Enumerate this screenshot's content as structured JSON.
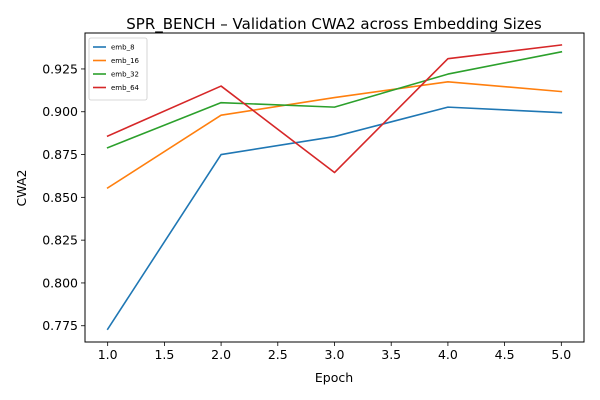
{
  "chart_data": {
    "type": "line",
    "title": "SPR_BENCH – Validation CWA2 across Embedding Sizes",
    "xlabel": "Epoch",
    "ylabel": "CWA2",
    "x": [
      1,
      2,
      3,
      4,
      5
    ],
    "xlim": [
      0.8,
      5.2
    ],
    "ylim": [
      0.7655,
      0.946
    ],
    "xticks": [
      "1.0",
      "1.5",
      "2.0",
      "2.5",
      "3.0",
      "3.5",
      "4.0",
      "4.5",
      "5.0"
    ],
    "yticks": [
      "0.775",
      "0.800",
      "0.825",
      "0.850",
      "0.875",
      "0.900",
      "0.925"
    ],
    "grid": false,
    "legend_position": "top-left",
    "series": [
      {
        "name": "emb_8",
        "color": "#1f77b4",
        "values": [
          0.773,
          0.875,
          0.8855,
          0.9027,
          0.8995
        ]
      },
      {
        "name": "emb_16",
        "color": "#ff7f0e",
        "values": [
          0.8555,
          0.898,
          0.9083,
          0.9175,
          0.9118
        ]
      },
      {
        "name": "emb_32",
        "color": "#2ca02c",
        "values": [
          0.879,
          0.9053,
          0.9027,
          0.922,
          0.935
        ]
      },
      {
        "name": "emb_64",
        "color": "#d62728",
        "values": [
          0.8858,
          0.915,
          0.8645,
          0.931,
          0.939
        ]
      }
    ]
  }
}
